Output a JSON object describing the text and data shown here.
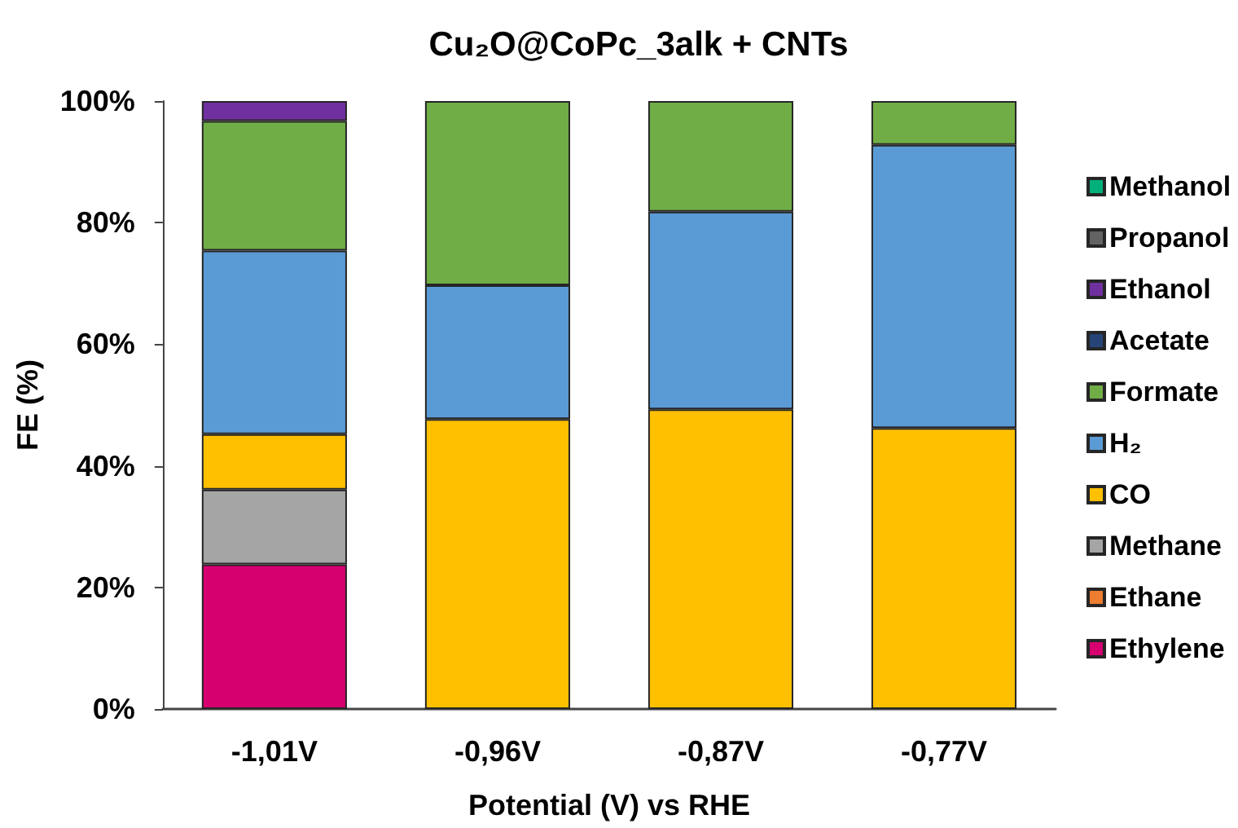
{
  "chart_data": {
    "type": "bar",
    "title": "Cu₂O@CoPc_3alk + CNTs",
    "xlabel": "Potential (V) vs RHE",
    "ylabel": "FE (%)",
    "categories": [
      "-1,01V",
      "-0,96V",
      "-0,87V",
      "-0,77V"
    ],
    "stacked": true,
    "series": [
      {
        "name": "Ethylene",
        "color": "#d6006f",
        "values": [
          23.8,
          null,
          null,
          null
        ]
      },
      {
        "name": "Ethane",
        "color": "#ed7d31",
        "values": [
          null,
          null,
          null,
          null
        ]
      },
      {
        "name": "Methane",
        "color": "#a5a5a5",
        "values": [
          12.3,
          null,
          null,
          null
        ]
      },
      {
        "name": "CO",
        "color": "#ffc000",
        "values": [
          9.1,
          47.7,
          49.3,
          46.2
        ]
      },
      {
        "name": "H₂",
        "color": "#5b9bd5",
        "values": [
          30.2,
          22.0,
          32.5,
          46.6
        ]
      },
      {
        "name": "Formate",
        "color": "#70ad47",
        "values": [
          21.3,
          30.3,
          18.2,
          7.2
        ]
      },
      {
        "name": "Acetate",
        "color": "#264478",
        "values": [
          null,
          null,
          null,
          null
        ]
      },
      {
        "name": "Ethanol",
        "color": "#7030a0",
        "values": [
          3.3,
          null,
          null,
          null
        ]
      },
      {
        "name": "Propanol",
        "color": "#636363",
        "values": [
          null,
          null,
          null,
          null
        ]
      },
      {
        "name": "Methanol",
        "color": "#00b07a",
        "values": [
          null,
          null,
          null,
          null
        ]
      }
    ],
    "ylim": [
      0,
      100
    ],
    "yticks": [
      {
        "value": 0,
        "label": "0%"
      },
      {
        "value": 20,
        "label": "20%"
      },
      {
        "value": 40,
        "label": "40%"
      },
      {
        "value": 60,
        "label": "60%"
      },
      {
        "value": 80,
        "label": "80%"
      },
      {
        "value": 100,
        "label": "100%"
      }
    ],
    "grid": false,
    "legend": "right"
  }
}
